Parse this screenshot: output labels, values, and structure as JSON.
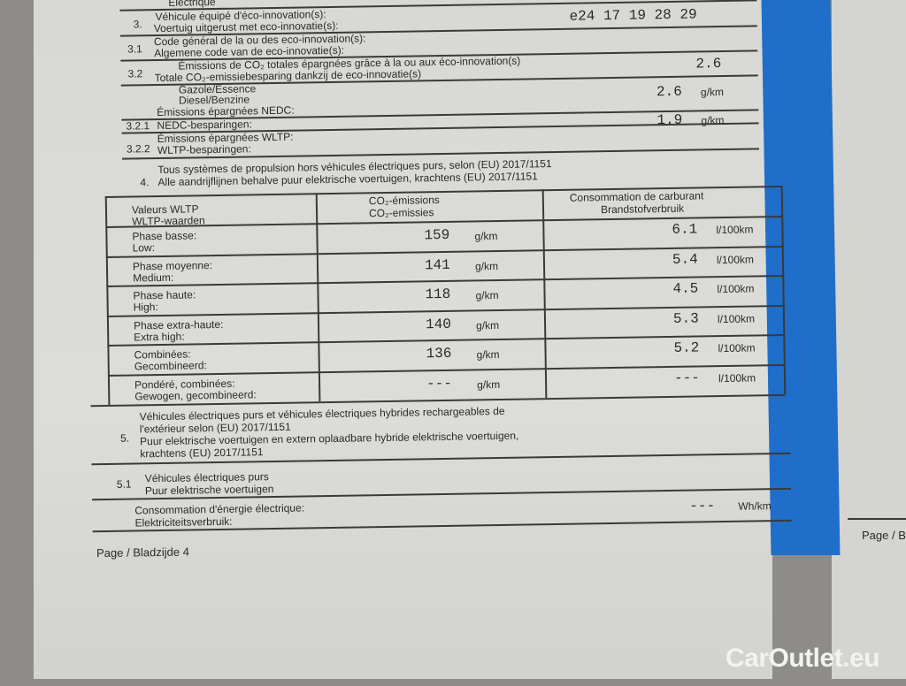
{
  "section3": {
    "cut_label": "Électrique",
    "num": "3.",
    "fr": "Véhicule équipé d'éco-innovation(s):",
    "nl": "Voertuig uitgerust met eco-innovatie(s):",
    "sub1": {
      "num": "3.1",
      "fr": "Code général de la ou des eco-innovation(s):",
      "nl": "Algemene code van de eco-innovatie(s):",
      "value": "e24 17 19 28 29"
    },
    "sub2": {
      "num": "3.2",
      "fr": "Émissions de CO₂ totales épargnées grâce à la ou aux éco-innovation(s)",
      "nl": "Totale CO₂-emissiebesparing dankzij de eco-innovatie(s)",
      "value": "2.6"
    },
    "fuel": {
      "fr": "Gazole/Essence",
      "nl": "Diesel/Benzine"
    },
    "sub21": {
      "num": "3.2.1",
      "fr": "Émissions épargnées NEDC:",
      "nl": "NEDC-besparingen:",
      "value": "2.6",
      "unit": "g/km"
    },
    "sub22": {
      "num": "3.2.2",
      "fr": "Émissions épargnées WLTP:",
      "nl": "WLTP-besparingen:",
      "value": "1.9",
      "unit": "g/km"
    }
  },
  "section4": {
    "num": "4.",
    "fr": "Tous systèmes de propulsion hors véhicules électriques purs, selon (EU) 2017/1151",
    "nl": "Alle aandrijflijnen behalve puur elektrische voertuigen, krachtens (EU) 2017/1151"
  },
  "table": {
    "headers": [
      {
        "fr": "Valeurs WLTP",
        "nl": "WLTP-waarden"
      },
      {
        "fr": "CO₂-émissions",
        "nl": "CO₂-emissies"
      },
      {
        "fr": "Consommation de carburant",
        "nl": "Brandstofverbruik"
      }
    ],
    "rows": [
      {
        "fr": "Phase basse:",
        "nl": "Low:",
        "co2": "159",
        "co2_unit": "g/km",
        "fuel": "6.1",
        "fuel_unit": "l/100km"
      },
      {
        "fr": "Phase moyenne:",
        "nl": "Medium:",
        "co2": "141",
        "co2_unit": "g/km",
        "fuel": "5.4",
        "fuel_unit": "l/100km"
      },
      {
        "fr": "Phase haute:",
        "nl": "High:",
        "co2": "118",
        "co2_unit": "g/km",
        "fuel": "4.5",
        "fuel_unit": "l/100km"
      },
      {
        "fr": "Phase extra-haute:",
        "nl": "Extra high:",
        "co2": "140",
        "co2_unit": "g/km",
        "fuel": "5.3",
        "fuel_unit": "l/100km"
      },
      {
        "fr": "Combinées:",
        "nl": "Gecombineerd:",
        "co2": "136",
        "co2_unit": "g/km",
        "fuel": "5.2",
        "fuel_unit": "l/100km"
      },
      {
        "fr": "Pondéré, combinées:",
        "nl": "Gewogen, gecombineerd:",
        "co2": "---",
        "co2_unit": "g/km",
        "fuel": "---",
        "fuel_unit": "l/100km"
      }
    ]
  },
  "section5": {
    "num": "5.",
    "l1": "Véhicules électriques purs et véhicules électriques hybrides rechargeables de",
    "l2": "l'extérieur selon (EU) 2017/1151",
    "l3": "Puur elektrische voertuigen en extern oplaadbare hybride elektrische voertuigen,",
    "l4": "krachtens (EU) 2017/1151"
  },
  "section51": {
    "num": "5.1",
    "fr": "Véhicules électriques purs",
    "nl": "Puur elektrische voertuigen"
  },
  "consumption": {
    "fr": "Consommation d'énergie électrique:",
    "nl": "Elektriciteitsverbruik:",
    "value": "---",
    "unit": "Wh/km"
  },
  "footer": {
    "page": "Page / Bladzijde 4",
    "next_page": "Page / B"
  },
  "watermark": "CarOutlet.eu",
  "colors": {
    "stripe": "#1f6ec9",
    "paper": "#dcdcd8"
  }
}
